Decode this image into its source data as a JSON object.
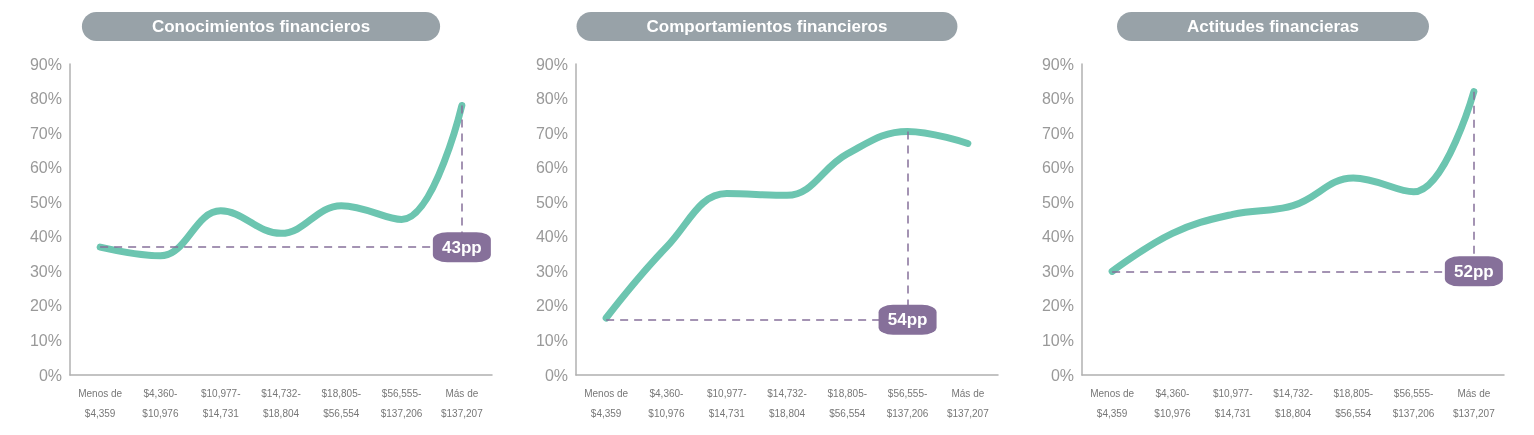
{
  "chart_data": [
    {
      "type": "line",
      "title": "Conocimientos financieros",
      "categories": [
        "Menos de\n$4,359",
        "$4,360-\n$10,976",
        "$10,977-\n$14,731",
        "$14,732-\n$18,804",
        "$18,805-\n$56,554",
        "$56,555-\n$137,206",
        "Más de\n$137,207"
      ],
      "series": [
        {
          "color": "#6cc5b0",
          "values": [
            37,
            34.5,
            47.5,
            41,
            49,
            45,
            78
          ]
        }
      ],
      "ylim": [
        0,
        90
      ],
      "yticks": [
        {
          "value": 0,
          "label": "0%"
        },
        {
          "value": 10,
          "label": "10%"
        },
        {
          "value": 20,
          "label": "20%"
        },
        {
          "value": 30,
          "label": "30%"
        },
        {
          "value": 40,
          "label": "40%"
        },
        {
          "value": 50,
          "label": "50%"
        },
        {
          "value": 60,
          "label": "60%"
        },
        {
          "value": 70,
          "label": "70%"
        },
        {
          "value": 80,
          "label": "80%"
        },
        {
          "value": 90,
          "label": "90%"
        }
      ],
      "ref_lines": [
        {
          "axis": "y",
          "value": 37,
          "label": "43pp",
          "color": "#86709a",
          "line_style": "dashed"
        },
        {
          "axis": "x",
          "value": "Más de\n$137,207",
          "label": null,
          "color": "#86709a",
          "line_style": "dashed"
        }
      ],
      "grid": false,
      "marker": "none",
      "line_style": "solid"
    },
    {
      "type": "line",
      "title": "Comportamientos financieros",
      "categories": [
        "Menos de\n$4,359",
        "$4,360-\n$10,976",
        "$10,977-\n$14,731",
        "$14,732-\n$18,804",
        "$18,805-\n$56,554",
        "$56,555-\n$137,206",
        "Más de\n$137,207"
      ],
      "series": [
        {
          "color": "#6cc5b0",
          "values": [
            16.5,
            37,
            52.5,
            52,
            64,
            70.5,
            67
          ]
        }
      ],
      "ylim": [
        0,
        90
      ],
      "yticks": [
        {
          "value": 0,
          "label": "0%"
        },
        {
          "value": 10,
          "label": "10%"
        },
        {
          "value": 20,
          "label": "20%"
        },
        {
          "value": 30,
          "label": "30%"
        },
        {
          "value": 40,
          "label": "40%"
        },
        {
          "value": 50,
          "label": "50%"
        },
        {
          "value": 60,
          "label": "60%"
        },
        {
          "value": 70,
          "label": "70%"
        },
        {
          "value": 80,
          "label": "80%"
        },
        {
          "value": 90,
          "label": "90%"
        }
      ],
      "ref_lines": [
        {
          "axis": "y",
          "value": 16,
          "label": "54pp",
          "color": "#86709a",
          "line_style": "dashed"
        },
        {
          "axis": "x",
          "value": "$56,555-\n$137,206",
          "label": null,
          "color": "#86709a",
          "line_style": "dashed"
        }
      ],
      "grid": false,
      "marker": "none",
      "line_style": "solid"
    },
    {
      "type": "line",
      "title": "Actitudes financieras",
      "categories": [
        "Menos de\n$4,359",
        "$4,360-\n$10,976",
        "$10,977-\n$14,731",
        "$14,732-\n$18,804",
        "$18,805-\n$56,554",
        "$56,555-\n$137,206",
        "Más de\n$137,207"
      ],
      "series": [
        {
          "color": "#6cc5b0",
          "values": [
            30,
            41,
            46.5,
            49,
            57,
            53,
            82
          ]
        }
      ],
      "ylim": [
        0,
        90
      ],
      "yticks": [
        {
          "value": 0,
          "label": "0%"
        },
        {
          "value": 10,
          "label": "10%"
        },
        {
          "value": 20,
          "label": "20%"
        },
        {
          "value": 30,
          "label": "30%"
        },
        {
          "value": 40,
          "label": "40%"
        },
        {
          "value": 50,
          "label": "50%"
        },
        {
          "value": 60,
          "label": "60%"
        },
        {
          "value": 70,
          "label": "70%"
        },
        {
          "value": 80,
          "label": "80%"
        },
        {
          "value": 90,
          "label": "90%"
        }
      ],
      "ref_lines": [
        {
          "axis": "y",
          "value": 30,
          "label": "52pp",
          "color": "#86709a",
          "line_style": "dashed"
        },
        {
          "axis": "x",
          "value": "Más de\n$137,207",
          "label": null,
          "color": "#86709a",
          "line_style": "dashed"
        }
      ],
      "grid": false,
      "marker": "none",
      "line_style": "solid"
    }
  ]
}
